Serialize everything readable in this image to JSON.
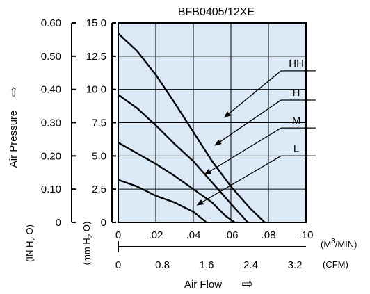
{
  "chart_data": {
    "type": "line",
    "title": "BFB0405/12XE",
    "xlabel": "Air Flow",
    "xlabel_arrow": "⇨",
    "ylabel": "Air Pressure",
    "ylabel_arrow": "⇨",
    "x_unit_primary": "M3/MIN",
    "x_unit_secondary": "(CFM)",
    "y_unit_inch": "IN H2O",
    "y_unit_mm": "mm H2O",
    "x_primary_ticks": [
      "0",
      ".02",
      ".04",
      ".06",
      ".08",
      ".10"
    ],
    "x_primary_values": [
      0,
      0.02,
      0.04,
      0.06,
      0.08,
      0.1
    ],
    "x_secondary_ticks": [
      "0",
      "0.8",
      "1.6",
      "2.4",
      "3.2"
    ],
    "x_secondary_values": [
      0,
      0.8,
      1.6,
      2.4,
      3.2
    ],
    "y_mm_ticks": [
      "0",
      "2.5",
      "5.0",
      "7.5",
      "10.0",
      "12.5",
      "15.0"
    ],
    "y_mm_values": [
      0,
      2.5,
      5.0,
      7.5,
      10.0,
      12.5,
      15.0
    ],
    "y_inch_ticks": [
      "0",
      "0.10",
      "0.20",
      "0.30",
      "0.40",
      "0.50",
      "0.60"
    ],
    "y_inch_values": [
      0,
      0.1,
      0.2,
      0.3,
      0.4,
      0.5,
      0.6
    ],
    "xlim": [
      0,
      0.1
    ],
    "ylim": [
      0,
      15.0
    ],
    "grid": true,
    "plot_background": "#dce9f6",
    "line_color": "#000000",
    "series": [
      {
        "name": "HH",
        "label_at": [
          0.103,
          11.4
        ],
        "arrow_to": [
          0.0565,
          7.9
        ],
        "points": [
          [
            0,
            14.2
          ],
          [
            0.01,
            12.9
          ],
          [
            0.02,
            11.1
          ],
          [
            0.03,
            9.0
          ],
          [
            0.04,
            6.8
          ],
          [
            0.05,
            4.6
          ],
          [
            0.06,
            2.7
          ],
          [
            0.07,
            1.1
          ],
          [
            0.078,
            0
          ]
        ]
      },
      {
        "name": "H",
        "label_at": [
          0.103,
          9.2
        ],
        "arrow_to": [
          0.0515,
          5.8
        ],
        "points": [
          [
            0,
            9.6
          ],
          [
            0.01,
            8.6
          ],
          [
            0.02,
            7.3
          ],
          [
            0.03,
            5.9
          ],
          [
            0.04,
            4.6
          ],
          [
            0.05,
            3.0
          ],
          [
            0.06,
            1.4
          ],
          [
            0.069,
            0
          ]
        ]
      },
      {
        "name": "M",
        "label_at": [
          0.103,
          7.1
        ],
        "arrow_to": [
          0.046,
          3.6
        ],
        "points": [
          [
            0,
            6.0
          ],
          [
            0.01,
            5.2
          ],
          [
            0.02,
            4.4
          ],
          [
            0.03,
            3.5
          ],
          [
            0.04,
            2.5
          ],
          [
            0.05,
            1.5
          ],
          [
            0.057,
            0.5
          ],
          [
            0.062,
            0
          ]
        ]
      },
      {
        "name": "L",
        "label_at": [
          0.103,
          5.0
        ],
        "arrow_to": [
          0.042,
          1.3
        ],
        "points": [
          [
            0,
            3.2
          ],
          [
            0.01,
            2.7
          ],
          [
            0.02,
            2.0
          ],
          [
            0.03,
            1.5
          ],
          [
            0.04,
            0.8
          ],
          [
            0.047,
            0
          ]
        ]
      }
    ]
  }
}
